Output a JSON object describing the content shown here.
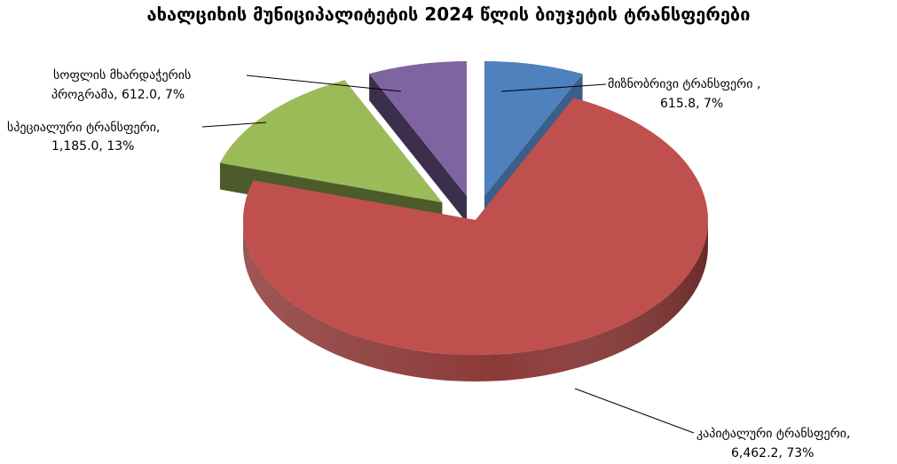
{
  "chart_data": {
    "type": "pie",
    "title": "ახალციხის მუნიციპალიტეტის 2024 წლის ბიუჯეტის ტრანსფერები",
    "slices": [
      {
        "category": "მიზნობრივი ტრანსფერი ,",
        "value": 615.8,
        "percent": 7,
        "value_label": "615.8, 7%",
        "color": "#4F81BD",
        "side_color": "#3A5F8B"
      },
      {
        "category": "კაპიტალური ტრანსფერი,",
        "value": 6462.2,
        "percent": 73,
        "value_label": "6,462.2, 73%",
        "color": "#C0504D",
        "side_color": "#8C3A38"
      },
      {
        "category": "სპეციალური ტრანსფერი,",
        "value": 1185.0,
        "percent": 13,
        "value_label": "1,185.0, 13%",
        "color": "#9BBB59",
        "side_color": "#4B5B2A"
      },
      {
        "category": "სოფლის მხარდაჭერის პროგრამა,",
        "value": 612.0,
        "percent": 7,
        "value_label": "612.0, 7%",
        "color": "#8064A2",
        "side_color": "#3C2F4D"
      }
    ],
    "legend": "none",
    "exploded": true,
    "view": "3d"
  }
}
